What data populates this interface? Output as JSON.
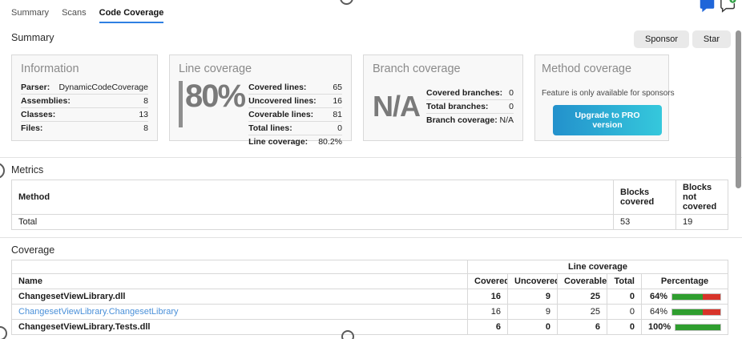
{
  "tabs": {
    "items": [
      {
        "label": "Summary"
      },
      {
        "label": "Scans"
      },
      {
        "label": "Code Coverage"
      }
    ]
  },
  "icons": {
    "top_right": [
      "chat-filled-icon",
      "chat-add-icon"
    ]
  },
  "summary": {
    "title": "Summary",
    "sponsor_button": "Sponsor",
    "star_button": "Star",
    "cards": {
      "information": {
        "title": "Information",
        "rows": [
          {
            "label": "Parser:",
            "value": "DynamicCodeCoverage"
          },
          {
            "label": "Assemblies:",
            "value": "8"
          },
          {
            "label": "Classes:",
            "value": "13"
          },
          {
            "label": "Files:",
            "value": "8"
          }
        ]
      },
      "line_coverage": {
        "title": "Line coverage",
        "big_value": "80%",
        "rows": [
          {
            "label": "Covered lines:",
            "value": "65"
          },
          {
            "label": "Uncovered lines:",
            "value": "16"
          },
          {
            "label": "Coverable lines:",
            "value": "81"
          },
          {
            "label": "Total lines:",
            "value": "0"
          },
          {
            "label": "Line coverage:",
            "value": "80.2%"
          }
        ]
      },
      "branch_coverage": {
        "title": "Branch coverage",
        "big_value": "N/A",
        "rows": [
          {
            "label": "Covered branches:",
            "value": "0"
          },
          {
            "label": "Total branches:",
            "value": "0"
          },
          {
            "label": "Branch coverage:",
            "value": "N/A"
          }
        ]
      },
      "method_coverage": {
        "title": "Method coverage",
        "message": "Feature is only available for sponsors",
        "button_label": "Upgrade to PRO version"
      }
    }
  },
  "metrics": {
    "title": "Metrics",
    "headers": [
      "Method",
      "Blocks covered",
      "Blocks not covered"
    ],
    "rows": [
      {
        "method": "Total",
        "blocks_covered": "53",
        "blocks_not_covered": "19"
      }
    ]
  },
  "coverage": {
    "title": "Coverage",
    "group_header": "Line coverage",
    "headers": [
      "Name",
      "Covered",
      "Uncovered",
      "Coverable",
      "Total",
      "Percentage"
    ],
    "rows": [
      {
        "name": "ChangesetViewLibrary.dll",
        "covered": "16",
        "uncovered": "9",
        "coverable": "25",
        "total": "0",
        "percentage": "64%",
        "pct": 64,
        "link": false
      },
      {
        "name": "ChangesetViewLibrary.ChangesetLibrary",
        "covered": "16",
        "uncovered": "9",
        "coverable": "25",
        "total": "0",
        "percentage": "64%",
        "pct": 64,
        "link": true
      },
      {
        "name": "ChangesetViewLibrary.Tests.dll",
        "covered": "6",
        "uncovered": "0",
        "coverable": "6",
        "total": "0",
        "percentage": "100%",
        "pct": 100,
        "link": false
      }
    ]
  },
  "colors": {
    "accent_blue": "#2f80e2",
    "link_blue": "#4a90d9",
    "bar_green": "#2f9e2f",
    "bar_red": "#d8342a",
    "pro_gradient_start": "#2391cc",
    "pro_gradient_end": "#35c8dc"
  }
}
